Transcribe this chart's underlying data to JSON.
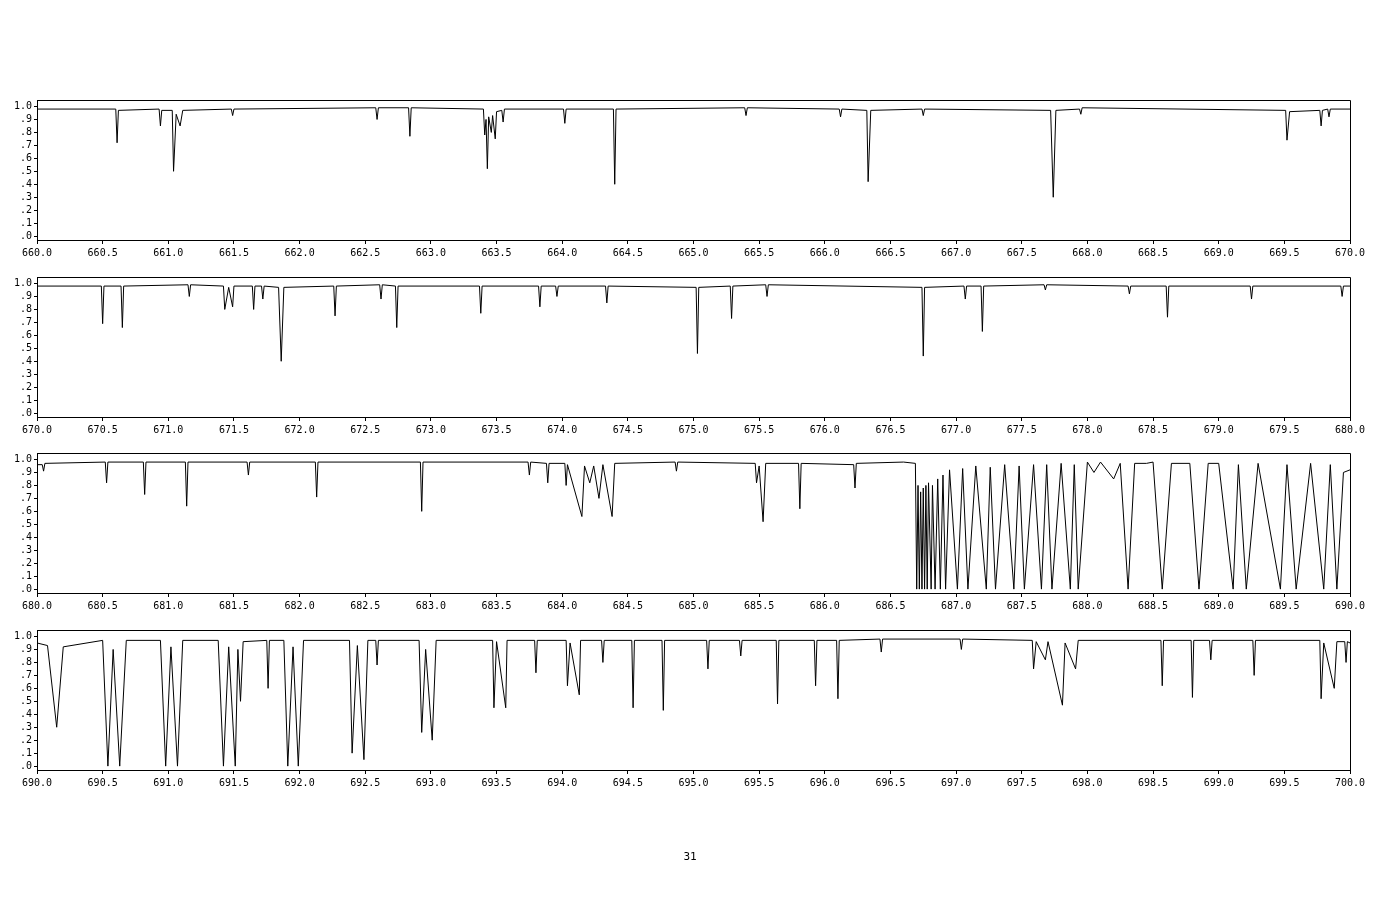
{
  "chart_data": [
    {
      "type": "line",
      "color": "#000000",
      "x": [
        660,
        660.6,
        660.61,
        660.62,
        660.93,
        660.94,
        660.95,
        661.03,
        661.04,
        661.06,
        661.09,
        661.11,
        661.48,
        661.49,
        661.5,
        662.58,
        662.59,
        662.6,
        662.83,
        662.84,
        662.85,
        663.4,
        663.41,
        663.42,
        663.43,
        663.44,
        663.46,
        663.47,
        663.49,
        663.5,
        663.54,
        663.55,
        663.56,
        664.01,
        664.02,
        664.03,
        664.39,
        664.4,
        664.41,
        665.39,
        665.4,
        665.41,
        666.11,
        666.12,
        666.13,
        666.32,
        666.33,
        666.35,
        666.74,
        666.75,
        666.76,
        667.72,
        667.74,
        667.76,
        667.94,
        667.95,
        667.96,
        669.51,
        669.52,
        669.54,
        669.77,
        669.78,
        669.79,
        669.83,
        669.84,
        669.85,
        670
      ],
      "values": [
        0.98,
        0.98,
        0.72,
        0.97,
        0.98,
        0.85,
        0.97,
        0.97,
        0.5,
        0.94,
        0.85,
        0.97,
        0.98,
        0.93,
        0.98,
        0.99,
        0.9,
        0.99,
        0.99,
        0.77,
        0.99,
        0.98,
        0.78,
        0.9,
        0.52,
        0.92,
        0.8,
        0.93,
        0.75,
        0.96,
        0.97,
        0.88,
        0.98,
        0.98,
        0.87,
        0.98,
        0.98,
        0.4,
        0.98,
        0.99,
        0.93,
        0.99,
        0.98,
        0.92,
        0.98,
        0.97,
        0.42,
        0.97,
        0.98,
        0.93,
        0.98,
        0.97,
        0.3,
        0.97,
        0.98,
        0.94,
        0.99,
        0.97,
        0.74,
        0.96,
        0.97,
        0.85,
        0.97,
        0.98,
        0.92,
        0.98,
        0.98
      ],
      "xlim": [
        660,
        670
      ],
      "ylim": [
        -0.03,
        1.05
      ],
      "xticks": [
        {
          "value": 660,
          "label": "660.0"
        },
        660.5,
        {
          "value": 661,
          "label": "661.0"
        },
        661.5,
        {
          "value": 662,
          "label": "662.0"
        },
        662.5,
        {
          "value": 663,
          "label": "663.0"
        },
        663.5,
        {
          "value": 664,
          "label": "664.0"
        },
        664.5,
        {
          "value": 665,
          "label": "665.0"
        },
        665.5,
        {
          "value": 666,
          "label": "666.0"
        },
        666.5,
        {
          "value": 667,
          "label": "667.0"
        },
        667.5,
        {
          "value": 668,
          "label": "668.0"
        },
        668.5,
        {
          "value": 669,
          "label": "669.0"
        },
        669.5,
        {
          "value": 670,
          "label": "670.0"
        }
      ],
      "yticks": [
        {
          "value": 0,
          "label": ".0"
        },
        {
          "value": 0.1,
          "label": ".1"
        },
        {
          "value": 0.2,
          "label": ".2"
        },
        {
          "value": 0.3,
          "label": ".3"
        },
        {
          "value": 0.4,
          "label": ".4"
        },
        {
          "value": 0.5,
          "label": ".5"
        },
        {
          "value": 0.6,
          "label": ".6"
        },
        {
          "value": 0.7,
          "label": ".7"
        },
        {
          "value": 0.8,
          "label": ".8"
        },
        {
          "value": 0.9,
          "label": ".9"
        },
        {
          "value": 1,
          "label": "1.0"
        }
      ]
    },
    {
      "type": "line",
      "color": "#000000",
      "x": [
        670,
        670.49,
        670.5,
        670.51,
        670.64,
        670.65,
        670.66,
        671.15,
        671.16,
        671.17,
        671.42,
        671.43,
        671.46,
        671.49,
        671.5,
        671.64,
        671.65,
        671.66,
        671.71,
        671.72,
        671.73,
        671.84,
        671.86,
        671.88,
        672.26,
        672.27,
        672.28,
        672.61,
        672.62,
        672.63,
        672.73,
        672.74,
        672.75,
        673.37,
        673.38,
        673.39,
        673.82,
        673.83,
        673.84,
        673.95,
        673.96,
        673.97,
        674.33,
        674.34,
        674.35,
        675.02,
        675.03,
        675.04,
        675.28,
        675.29,
        675.3,
        675.55,
        675.56,
        675.57,
        676.74,
        676.75,
        676.76,
        677.06,
        677.07,
        677.08,
        677.19,
        677.2,
        677.21,
        677.67,
        677.68,
        677.69,
        678.31,
        678.32,
        678.33,
        678.6,
        678.61,
        678.62,
        679.24,
        679.25,
        679.26,
        679.93,
        679.94,
        679.95,
        680
      ],
      "values": [
        0.98,
        0.98,
        0.69,
        0.98,
        0.98,
        0.66,
        0.98,
        0.99,
        0.9,
        0.99,
        0.98,
        0.8,
        0.97,
        0.82,
        0.98,
        0.98,
        0.8,
        0.98,
        0.98,
        0.88,
        0.98,
        0.97,
        0.4,
        0.97,
        0.98,
        0.75,
        0.98,
        0.99,
        0.88,
        0.99,
        0.98,
        0.66,
        0.98,
        0.98,
        0.77,
        0.98,
        0.98,
        0.82,
        0.98,
        0.98,
        0.9,
        0.98,
        0.98,
        0.85,
        0.98,
        0.97,
        0.46,
        0.97,
        0.98,
        0.73,
        0.98,
        0.99,
        0.9,
        0.99,
        0.97,
        0.44,
        0.97,
        0.98,
        0.88,
        0.98,
        0.98,
        0.63,
        0.98,
        0.99,
        0.95,
        0.99,
        0.98,
        0.92,
        0.98,
        0.98,
        0.74,
        0.98,
        0.98,
        0.88,
        0.98,
        0.98,
        0.9,
        0.98,
        0.98
      ],
      "xlim": [
        670,
        680
      ],
      "ylim": [
        -0.03,
        1.05
      ],
      "xticks": [
        {
          "value": 670,
          "label": "670.0"
        },
        670.5,
        {
          "value": 671,
          "label": "671.0"
        },
        671.5,
        {
          "value": 672,
          "label": "672.0"
        },
        672.5,
        {
          "value": 673,
          "label": "673.0"
        },
        673.5,
        {
          "value": 674,
          "label": "674.0"
        },
        674.5,
        {
          "value": 675,
          "label": "675.0"
        },
        675.5,
        {
          "value": 676,
          "label": "676.0"
        },
        676.5,
        {
          "value": 677,
          "label": "677.0"
        },
        677.5,
        {
          "value": 678,
          "label": "678.0"
        },
        678.5,
        {
          "value": 679,
          "label": "679.0"
        },
        679.5,
        {
          "value": 680,
          "label": "680.0"
        }
      ],
      "yticks": [
        {
          "value": 0,
          "label": ".0"
        },
        {
          "value": 0.1,
          "label": ".1"
        },
        {
          "value": 0.2,
          "label": ".2"
        },
        {
          "value": 0.3,
          "label": ".3"
        },
        {
          "value": 0.4,
          "label": ".4"
        },
        {
          "value": 0.5,
          "label": ".5"
        },
        {
          "value": 0.6,
          "label": ".6"
        },
        {
          "value": 0.7,
          "label": ".7"
        },
        {
          "value": 0.8,
          "label": ".8"
        },
        {
          "value": 0.9,
          "label": ".9"
        },
        {
          "value": 1,
          "label": "1.0"
        }
      ]
    },
    {
      "type": "line",
      "color": "#000000",
      "x": [
        680,
        680.04,
        680.05,
        680.06,
        680.52,
        680.53,
        680.54,
        680.81,
        680.82,
        680.83,
        681.13,
        681.14,
        681.15,
        681.6,
        681.61,
        681.62,
        682.12,
        682.13,
        682.14,
        682.92,
        682.93,
        682.94,
        683.74,
        683.75,
        683.76,
        683.88,
        683.89,
        683.9,
        684.02,
        684.03,
        684.04,
        684.15,
        684.17,
        684.21,
        684.24,
        684.28,
        684.31,
        684.38,
        684.4,
        684.86,
        684.87,
        684.88,
        685.47,
        685.48,
        685.5,
        685.53,
        685.55,
        685.8,
        685.81,
        685.82,
        686.22,
        686.23,
        686.24,
        686.6,
        686.69,
        686.7,
        686.71,
        686.72,
        686.73,
        686.74,
        686.75,
        686.76,
        686.77,
        686.78,
        686.79,
        686.81,
        686.82,
        686.84,
        686.86,
        686.88,
        686.9,
        686.92,
        686.95,
        687.01,
        687.05,
        687.09,
        687.15,
        687.23,
        687.26,
        687.3,
        687.37,
        687.44,
        687.48,
        687.52,
        687.59,
        687.65,
        687.69,
        687.73,
        687.8,
        687.87,
        687.9,
        687.93,
        688,
        688.05,
        688.1,
        688.2,
        688.25,
        688.31,
        688.36,
        688.45,
        688.5,
        688.57,
        688.64,
        688.78,
        688.85,
        688.92,
        689,
        689.11,
        689.15,
        689.21,
        689.3,
        689.47,
        689.52,
        689.59,
        689.7,
        689.8,
        689.85,
        689.9,
        689.95,
        690
      ],
      "values": [
        0.96,
        0.96,
        0.91,
        0.97,
        0.98,
        0.82,
        0.98,
        0.98,
        0.73,
        0.98,
        0.98,
        0.64,
        0.98,
        0.98,
        0.88,
        0.98,
        0.98,
        0.71,
        0.98,
        0.98,
        0.6,
        0.98,
        0.98,
        0.88,
        0.98,
        0.97,
        0.82,
        0.97,
        0.97,
        0.8,
        0.96,
        0.56,
        0.95,
        0.82,
        0.95,
        0.7,
        0.96,
        0.56,
        0.97,
        0.98,
        0.91,
        0.98,
        0.97,
        0.82,
        0.95,
        0.52,
        0.97,
        0.97,
        0.62,
        0.97,
        0.96,
        0.78,
        0.97,
        0.98,
        0.97,
        0,
        0.8,
        0,
        0.75,
        0,
        0.78,
        0,
        0.8,
        0,
        0.82,
        0,
        0.8,
        0,
        0.85,
        0,
        0.88,
        0,
        0.92,
        0,
        0.93,
        0,
        0.95,
        0,
        0.94,
        0,
        0.96,
        0,
        0.95,
        0,
        0.96,
        0,
        0.96,
        0,
        0.97,
        0,
        0.96,
        0,
        0.98,
        0.9,
        0.98,
        0.85,
        0.97,
        0,
        0.97,
        0.97,
        0.98,
        0,
        0.97,
        0.97,
        0,
        0.97,
        0.97,
        0,
        0.96,
        0,
        0.97,
        0,
        0.96,
        0,
        0.97,
        0,
        0.96,
        0,
        0.9,
        0.92
      ],
      "xlim": [
        680,
        690
      ],
      "ylim": [
        -0.03,
        1.05
      ],
      "xticks": [
        {
          "value": 680,
          "label": "680.0"
        },
        680.5,
        {
          "value": 681,
          "label": "681.0"
        },
        681.5,
        {
          "value": 682,
          "label": "682.0"
        },
        682.5,
        {
          "value": 683,
          "label": "683.0"
        },
        683.5,
        {
          "value": 684,
          "label": "684.0"
        },
        684.5,
        {
          "value": 685,
          "label": "685.0"
        },
        685.5,
        {
          "value": 686,
          "label": "686.0"
        },
        686.5,
        {
          "value": 687,
          "label": "687.0"
        },
        687.5,
        {
          "value": 688,
          "label": "688.0"
        },
        688.5,
        {
          "value": 689,
          "label": "689.0"
        },
        689.5,
        {
          "value": 690,
          "label": "690.0"
        }
      ],
      "yticks": [
        {
          "value": 0,
          "label": ".0"
        },
        {
          "value": 0.1,
          "label": ".1"
        },
        {
          "value": 0.2,
          "label": ".2"
        },
        {
          "value": 0.3,
          "label": ".3"
        },
        {
          "value": 0.4,
          "label": ".4"
        },
        {
          "value": 0.5,
          "label": ".5"
        },
        {
          "value": 0.6,
          "label": ".6"
        },
        {
          "value": 0.7,
          "label": ".7"
        },
        {
          "value": 0.8,
          "label": ".8"
        },
        {
          "value": 0.9,
          "label": ".9"
        },
        {
          "value": 1,
          "label": "1.0"
        }
      ]
    },
    {
      "type": "line",
      "color": "#000000",
      "x": [
        690,
        690.08,
        690.15,
        690.2,
        690.5,
        690.54,
        690.58,
        690.63,
        690.68,
        690.94,
        690.98,
        691.02,
        691.07,
        691.11,
        691.38,
        691.42,
        691.46,
        691.51,
        691.53,
        691.55,
        691.57,
        691.75,
        691.76,
        691.77,
        691.88,
        691.91,
        691.95,
        691.99,
        692.03,
        692.38,
        692.4,
        692.44,
        692.49,
        692.52,
        692.58,
        692.59,
        692.6,
        692.91,
        692.93,
        692.96,
        693.01,
        693.04,
        693.47,
        693.48,
        693.5,
        693.57,
        693.58,
        693.79,
        693.8,
        693.81,
        694.03,
        694.04,
        694.06,
        694.13,
        694.14,
        694.3,
        694.31,
        694.32,
        694.53,
        694.54,
        694.55,
        694.76,
        694.77,
        694.78,
        695.1,
        695.11,
        695.12,
        695.35,
        695.36,
        695.37,
        695.63,
        695.64,
        695.65,
        695.92,
        695.93,
        695.94,
        696.09,
        696.1,
        696.11,
        696.42,
        696.43,
        696.44,
        697.03,
        697.04,
        697.05,
        697.58,
        697.59,
        697.61,
        697.68,
        697.7,
        697.81,
        697.83,
        697.91,
        697.93,
        698.56,
        698.57,
        698.58,
        698.79,
        698.8,
        698.81,
        698.93,
        698.94,
        698.95,
        699.26,
        699.27,
        699.28,
        699.77,
        699.78,
        699.8,
        699.88,
        699.9,
        699.96,
        699.97,
        699.98,
        700
      ],
      "values": [
        0.95,
        0.93,
        0.3,
        0.92,
        0.97,
        0,
        0.9,
        0,
        0.97,
        0.97,
        0,
        0.92,
        0,
        0.97,
        0.97,
        0,
        0.92,
        0,
        0.9,
        0.5,
        0.96,
        0.97,
        0.6,
        0.97,
        0.97,
        0,
        0.92,
        0,
        0.97,
        0.97,
        0.1,
        0.93,
        0.05,
        0.97,
        0.97,
        0.78,
        0.97,
        0.97,
        0.26,
        0.9,
        0.2,
        0.97,
        0.97,
        0.45,
        0.96,
        0.45,
        0.97,
        0.97,
        0.72,
        0.97,
        0.97,
        0.62,
        0.95,
        0.55,
        0.97,
        0.97,
        0.8,
        0.97,
        0.97,
        0.45,
        0.97,
        0.97,
        0.43,
        0.97,
        0.97,
        0.75,
        0.97,
        0.97,
        0.85,
        0.97,
        0.97,
        0.48,
        0.97,
        0.97,
        0.62,
        0.97,
        0.97,
        0.52,
        0.97,
        0.98,
        0.88,
        0.98,
        0.98,
        0.9,
        0.98,
        0.97,
        0.75,
        0.96,
        0.82,
        0.96,
        0.47,
        0.95,
        0.75,
        0.97,
        0.97,
        0.62,
        0.97,
        0.97,
        0.53,
        0.97,
        0.97,
        0.82,
        0.97,
        0.97,
        0.7,
        0.97,
        0.97,
        0.52,
        0.95,
        0.6,
        0.96,
        0.96,
        0.8,
        0.96,
        0.95
      ],
      "xlim": [
        690,
        700
      ],
      "ylim": [
        -0.03,
        1.05
      ],
      "xticks": [
        {
          "value": 690,
          "label": "690.0"
        },
        690.5,
        {
          "value": 691,
          "label": "691.0"
        },
        691.5,
        {
          "value": 692,
          "label": "692.0"
        },
        692.5,
        {
          "value": 693,
          "label": "693.0"
        },
        693.5,
        {
          "value": 694,
          "label": "694.0"
        },
        694.5,
        {
          "value": 695,
          "label": "695.0"
        },
        695.5,
        {
          "value": 696,
          "label": "696.0"
        },
        696.5,
        {
          "value": 697,
          "label": "697.0"
        },
        697.5,
        {
          "value": 698,
          "label": "698.0"
        },
        698.5,
        {
          "value": 699,
          "label": "699.0"
        },
        699.5,
        {
          "value": 700,
          "label": "700.0"
        }
      ],
      "yticks": [
        {
          "value": 0,
          "label": ".0"
        },
        {
          "value": 0.1,
          "label": ".1"
        },
        {
          "value": 0.2,
          "label": ".2"
        },
        {
          "value": 0.3,
          "label": ".3"
        },
        {
          "value": 0.4,
          "label": ".4"
        },
        {
          "value": 0.5,
          "label": ".5"
        },
        {
          "value": 0.6,
          "label": ".6"
        },
        {
          "value": 0.7,
          "label": ".7"
        },
        {
          "value": 0.8,
          "label": ".8"
        },
        {
          "value": 0.9,
          "label": ".9"
        },
        {
          "value": 1,
          "label": "1.0"
        }
      ],
      "annotations": [
        "31"
      ]
    }
  ]
}
